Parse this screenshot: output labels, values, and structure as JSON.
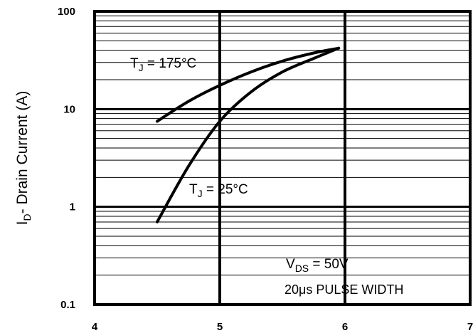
{
  "chart_data": {
    "type": "line",
    "ylabel": {
      "main": "I",
      "sub": "D",
      "rest": "- Drain Current (A)"
    },
    "xlabel": "",
    "xlim": [
      4,
      7
    ],
    "ylim": [
      0.1,
      100
    ],
    "yscale": "log",
    "grid": true,
    "x_ticks": [
      "4",
      "5",
      "6",
      "7"
    ],
    "y_ticks": [
      "0.1",
      "1",
      "10",
      "100"
    ],
    "series": [
      {
        "name": "T_J = 175°C",
        "x": [
          4.5,
          4.75,
          5.0,
          5.25,
          5.5,
          5.75,
          5.95
        ],
        "y": [
          7.5,
          12,
          17.5,
          24,
          31,
          37.5,
          42
        ]
      },
      {
        "name": "T_J = 25°C",
        "x": [
          4.5,
          4.75,
          5.0,
          5.25,
          5.5,
          5.75,
          5.95
        ],
        "y": [
          0.7,
          2.6,
          7.5,
          15,
          24,
          33,
          42
        ]
      }
    ],
    "annotations": {
      "tj175": {
        "main": "T",
        "sub": "J",
        "rest": " = 175°C"
      },
      "tj25": {
        "main": "T",
        "sub": "J",
        "rest": " = 25°C"
      },
      "vds": {
        "main": "V",
        "sub": "DS",
        "rest": " = 50V"
      },
      "pulse": "20μs PULSE WIDTH"
    }
  }
}
